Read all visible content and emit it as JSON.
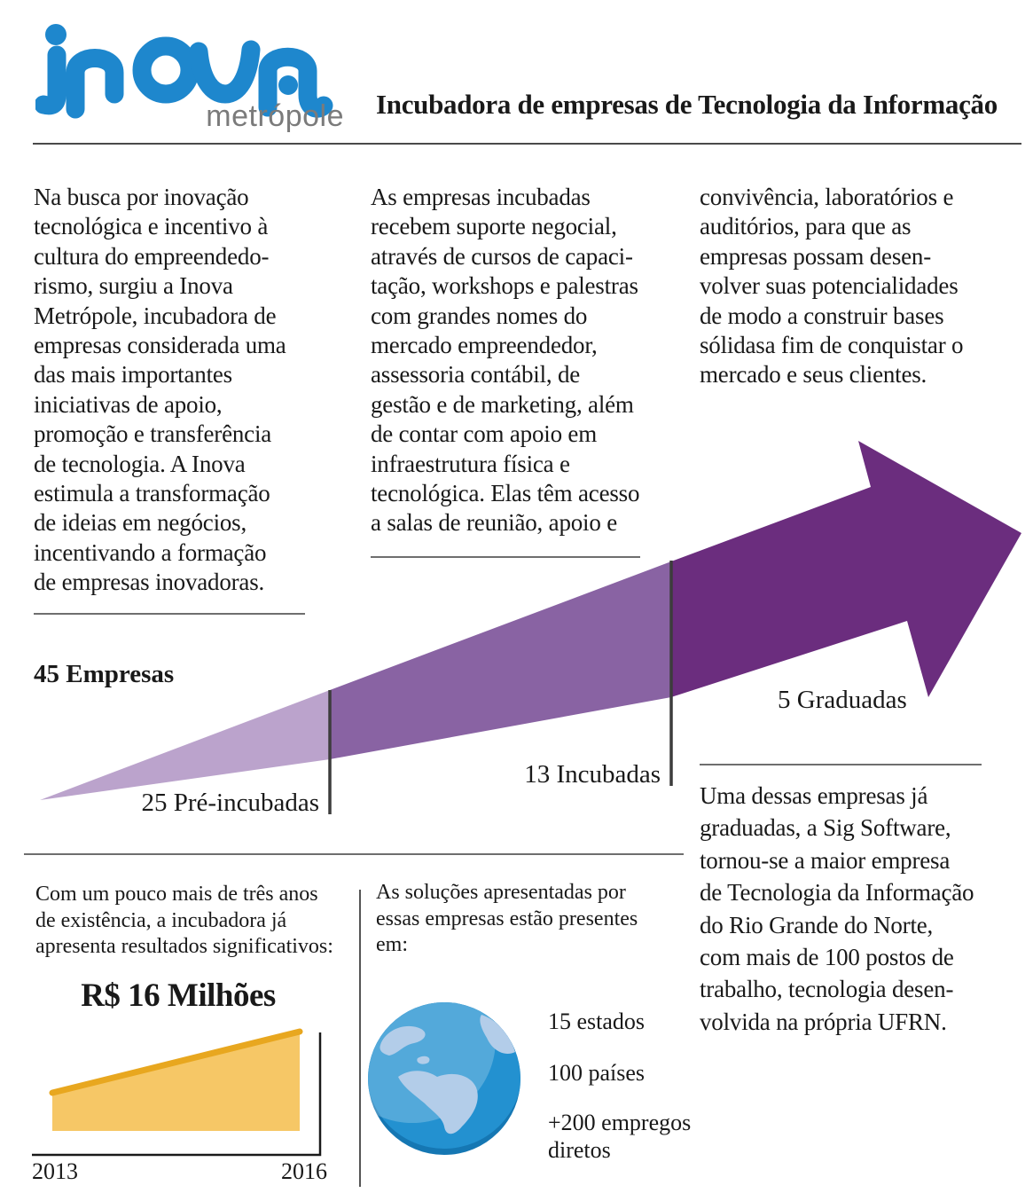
{
  "header": {
    "logo": {
      "brand": "inova",
      "sub": "metrópole",
      "blue": "#1e87cd",
      "gray": "#7b7b7b"
    },
    "tagline": "Incubadora de empresas de Tecnologia da Informação"
  },
  "intro": {
    "col1_lines": [
      "Na busca por inovação",
      "tecnológica e incentivo à",
      "cultura do empreendedo-",
      "rismo, surgiu a Inova",
      "Metrópole, incubadora de",
      "empresas considerada uma",
      "das mais importantes",
      "iniciativas de apoio,",
      "promoção e transferência",
      "de tecnologia. A Inova",
      "estimula a transformação",
      "de ideias em negócios,",
      "incentivando a formação",
      "de empresas inovadoras."
    ],
    "col2_lines": [
      "As empresas incubadas",
      "recebem suporte negocial,",
      "através de cursos de capaci-",
      "tação, workshops e palestras",
      "com grandes nomes do",
      "mercado empreendedor,",
      "assessoria contábil, de",
      "gestão e de marketing, além",
      "de contar com apoio em",
      "infraestrutura física e",
      "tecnológica. Elas têm acesso",
      "a salas de reunião, apoio e"
    ],
    "col3_lines": [
      "convivência, laboratórios e",
      "auditórios, para que as",
      "empresas possam desen-",
      "volver suas potencialidades",
      "de modo a construir bases",
      "sólidasa fim de conquistar o",
      "mercado e seus clientes."
    ]
  },
  "funnel": {
    "total_label": "45 Empresas",
    "bar_color": "#3c3c3c",
    "stages": [
      {
        "label": "25 Pré-incubadas",
        "value": 25,
        "color": "#bba3cc"
      },
      {
        "label": "13 Incubadas",
        "value": 13,
        "color": "#8963a3"
      },
      {
        "label": "5 Graduadas",
        "value": 5,
        "color": "#6b2d7e"
      }
    ]
  },
  "results": {
    "intro_lines": [
      "Com um pouco mais de três anos",
      "de existência, a incubadora já",
      "apresenta resultados significativos:"
    ],
    "headline": "R$ 16 Milhões",
    "chart": {
      "year_start": "2013",
      "year_end": "2016",
      "fill": "#f6c766",
      "line": "#e8a71f",
      "axis": "#1a1a1a"
    }
  },
  "presence": {
    "intro_lines": [
      "As soluções apresentadas por",
      "essas empresas estão presentes",
      "em:"
    ],
    "globe": {
      "ocean": "#2391d0",
      "land": "#b3cde9",
      "shadow": "#1577b3",
      "highlight": "rgba(255,255,255,0.22)"
    },
    "stats": [
      {
        "lines": [
          "15 estados"
        ]
      },
      {
        "lines": [
          "100 países"
        ]
      },
      {
        "lines": [
          "+200 empregos",
          "diretos"
        ]
      }
    ]
  },
  "sig": {
    "lines": [
      "Uma dessas empresas já",
      "graduadas, a Sig Software,",
      "tornou-se a maior empresa",
      "de Tecnologia da Informação",
      "do Rio Grande do Norte,",
      "com mais de 100 postos de",
      "trabalho, tecnologia desen-",
      "volvida na própria UFRN."
    ]
  },
  "chart_data": [
    {
      "type": "other",
      "subtype": "funnel-arrow",
      "title": "45 Empresas",
      "total": 45,
      "stages": [
        {
          "label": "Pré-incubadas",
          "value": 25
        },
        {
          "label": "Incubadas",
          "value": 13
        },
        {
          "label": "Graduadas",
          "value": 5
        }
      ],
      "legend_position": "below-segments",
      "direction": "up-right-arrow"
    },
    {
      "type": "area",
      "title": "R$ 16 Milhões",
      "xlabel": "",
      "ylabel": "",
      "x": [
        "2013",
        "2016"
      ],
      "values": [
        6,
        16
      ],
      "ylim": [
        0,
        16
      ],
      "grid": false,
      "note": "área amarela crescente; valor final R$ 16 milhões em 2016 (valor de 2013 estimado pela altura)"
    },
    {
      "type": "table",
      "title": "Presença das soluções",
      "rows": [
        [
          "estados",
          "15"
        ],
        [
          "países",
          "100"
        ],
        [
          "empregos diretos",
          "+200"
        ]
      ]
    }
  ]
}
